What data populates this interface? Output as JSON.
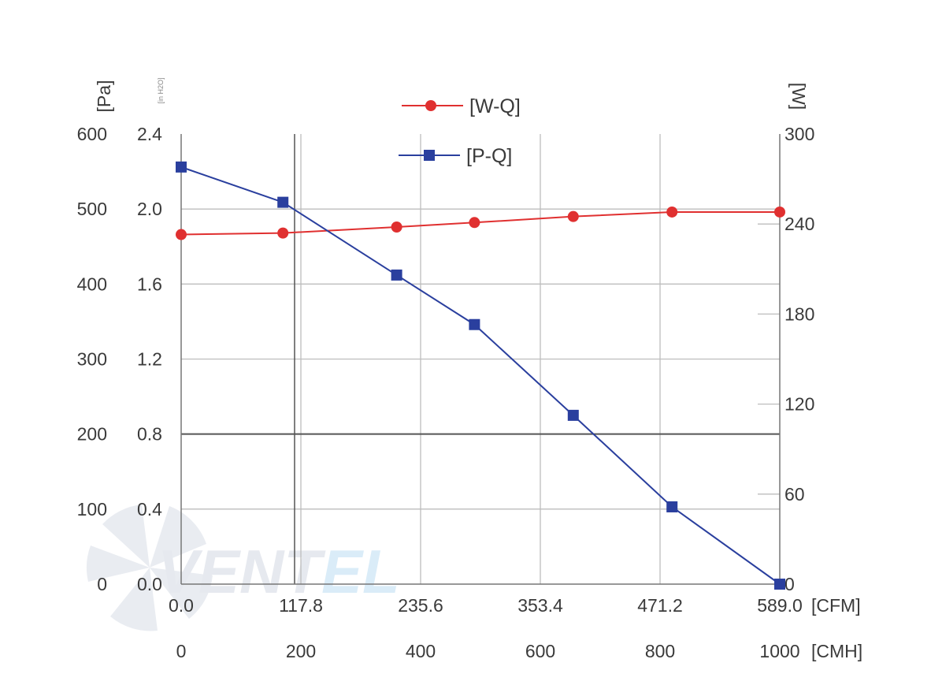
{
  "chart_data": {
    "type": "line",
    "x_primary": {
      "unit": "[CFM]",
      "ticks": [
        "0.0",
        "117.8",
        "235.6",
        "353.4",
        "471.2",
        "589.0"
      ]
    },
    "x_secondary": {
      "unit": "[CMH]",
      "ticks": [
        "0",
        "200",
        "400",
        "600",
        "800",
        "1000"
      ],
      "range": [
        0,
        1000
      ]
    },
    "y_left_pa": {
      "unit": "[Pa]",
      "ticks": [
        "0",
        "100",
        "200",
        "300",
        "400",
        "500",
        "600"
      ],
      "range": [
        0,
        600
      ]
    },
    "y_left_inh2o": {
      "unit": "[in H2O]",
      "ticks": [
        "0.0",
        "0.4",
        "0.8",
        "1.2",
        "1.6",
        "2.0",
        "2.4"
      ],
      "range": [
        0,
        2.4
      ]
    },
    "y_right_w": {
      "unit": "[W]",
      "ticks": [
        "0",
        "60",
        "120",
        "180",
        "240",
        "300"
      ],
      "range": [
        0,
        300
      ]
    },
    "series": [
      {
        "name": "[W-Q]",
        "axis": "right",
        "color": "#e03030",
        "marker": "circle",
        "points": [
          [
            0,
            233
          ],
          [
            170,
            234
          ],
          [
            360,
            238
          ],
          [
            490,
            241
          ],
          [
            655,
            245
          ],
          [
            820,
            248
          ],
          [
            1000,
            248
          ]
        ]
      },
      {
        "name": "[P-Q]",
        "axis": "left",
        "color": "#2a3f9e",
        "marker": "square",
        "points": [
          [
            0,
            556
          ],
          [
            170,
            509
          ],
          [
            360,
            412
          ],
          [
            490,
            346
          ],
          [
            655,
            225
          ],
          [
            820,
            103
          ],
          [
            1000,
            0
          ]
        ]
      }
    ],
    "legend": [
      "[W-Q]",
      "[P-Q]"
    ],
    "legend_position": "top-center",
    "grid": true,
    "watermark": "VENTEL"
  }
}
